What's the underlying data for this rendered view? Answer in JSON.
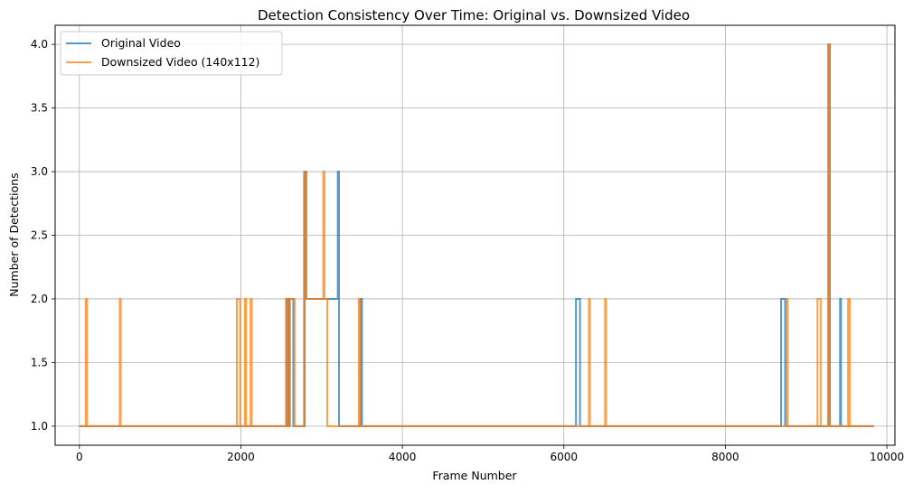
{
  "chart_data": {
    "type": "line",
    "title": "Detection Consistency Over Time: Original vs. Downsized Video",
    "xlabel": "Frame Number",
    "ylabel": "Number of Detections",
    "xlim": [
      -300,
      10100
    ],
    "ylim": [
      0.85,
      4.15
    ],
    "xticks": [
      0,
      2000,
      4000,
      6000,
      8000,
      10000
    ],
    "yticks": [
      1.0,
      1.5,
      2.0,
      2.5,
      3.0,
      3.5,
      4.0
    ],
    "xtick_labels": [
      "0",
      "2000",
      "4000",
      "6000",
      "8000",
      "10000"
    ],
    "ytick_labels": [
      "1.0",
      "1.5",
      "2.0",
      "2.5",
      "3.0",
      "3.5",
      "4.0"
    ],
    "grid": true,
    "legend_position": "top-left",
    "series": [
      {
        "name": "Original Video",
        "color": "#1f77b4",
        "values": [
          [
            0,
            1
          ],
          [
            2560,
            1
          ],
          [
            2560,
            2
          ],
          [
            2580,
            2
          ],
          [
            2580,
            1
          ],
          [
            2600,
            1
          ],
          [
            2600,
            2
          ],
          [
            2650,
            2
          ],
          [
            2650,
            1
          ],
          [
            2790,
            1
          ],
          [
            2790,
            3
          ],
          [
            2810,
            3
          ],
          [
            2810,
            2
          ],
          [
            3200,
            2
          ],
          [
            3200,
            3
          ],
          [
            3215,
            3
          ],
          [
            3215,
            1
          ],
          [
            3480,
            1
          ],
          [
            3480,
            2
          ],
          [
            3500,
            2
          ],
          [
            3500,
            1
          ],
          [
            6150,
            1
          ],
          [
            6150,
            2
          ],
          [
            6200,
            2
          ],
          [
            6200,
            1
          ],
          [
            8690,
            1
          ],
          [
            8690,
            2
          ],
          [
            8740,
            2
          ],
          [
            8740,
            1
          ],
          [
            9280,
            1
          ],
          [
            9280,
            4
          ],
          [
            9295,
            4
          ],
          [
            9295,
            1
          ],
          [
            9420,
            1
          ],
          [
            9420,
            2
          ],
          [
            9432,
            2
          ],
          [
            9432,
            1
          ],
          [
            9840,
            1
          ]
        ]
      },
      {
        "name": "Downsized Video (140x112)",
        "color": "#ff7f0e",
        "values": [
          [
            0,
            1
          ],
          [
            80,
            1
          ],
          [
            80,
            2
          ],
          [
            95,
            2
          ],
          [
            95,
            1
          ],
          [
            500,
            1
          ],
          [
            500,
            2
          ],
          [
            512,
            2
          ],
          [
            512,
            1
          ],
          [
            1950,
            1
          ],
          [
            1950,
            2
          ],
          [
            1990,
            2
          ],
          [
            1990,
            1
          ],
          [
            2050,
            1
          ],
          [
            2050,
            2
          ],
          [
            2065,
            2
          ],
          [
            2065,
            1
          ],
          [
            2120,
            1
          ],
          [
            2120,
            2
          ],
          [
            2135,
            2
          ],
          [
            2135,
            1
          ],
          [
            2560,
            1
          ],
          [
            2560,
            2
          ],
          [
            2575,
            2
          ],
          [
            2575,
            1
          ],
          [
            2610,
            1
          ],
          [
            2610,
            2
          ],
          [
            2665,
            2
          ],
          [
            2665,
            1
          ],
          [
            2780,
            1
          ],
          [
            2780,
            3
          ],
          [
            2800,
            3
          ],
          [
            2800,
            2
          ],
          [
            3020,
            2
          ],
          [
            3020,
            3
          ],
          [
            3035,
            3
          ],
          [
            3035,
            2
          ],
          [
            3070,
            2
          ],
          [
            3070,
            1
          ],
          [
            3460,
            1
          ],
          [
            3460,
            2
          ],
          [
            3475,
            2
          ],
          [
            3475,
            1
          ],
          [
            6310,
            1
          ],
          [
            6310,
            2
          ],
          [
            6322,
            2
          ],
          [
            6322,
            1
          ],
          [
            6510,
            1
          ],
          [
            6510,
            2
          ],
          [
            6522,
            2
          ],
          [
            6522,
            1
          ],
          [
            8760,
            1
          ],
          [
            8760,
            2
          ],
          [
            8772,
            2
          ],
          [
            8772,
            1
          ],
          [
            9140,
            1
          ],
          [
            9140,
            2
          ],
          [
            9180,
            2
          ],
          [
            9180,
            1
          ],
          [
            9270,
            1
          ],
          [
            9270,
            4
          ],
          [
            9290,
            4
          ],
          [
            9290,
            1
          ],
          [
            9520,
            1
          ],
          [
            9520,
            2
          ],
          [
            9540,
            2
          ],
          [
            9540,
            1
          ],
          [
            9840,
            1
          ]
        ]
      }
    ]
  }
}
